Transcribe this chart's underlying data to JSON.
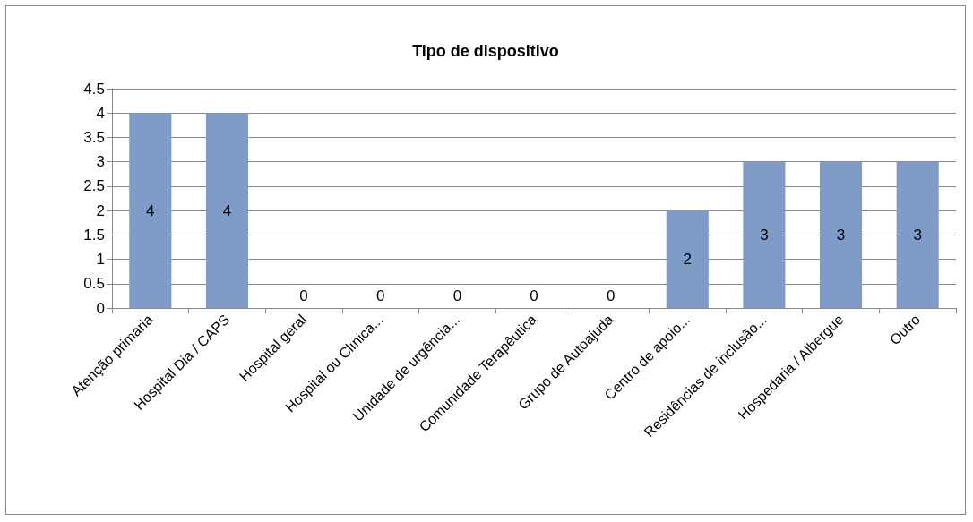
{
  "chart_data": {
    "type": "bar",
    "title": "Tipo de dispositivo",
    "categories": [
      "Atenção primária",
      "Hospital Dia / CAPS",
      "Hospital geral",
      "Hospital ou Clínica...",
      "Unidade de urgência...",
      "Comunidade Terapêutica",
      "Grupo de Autoajuda",
      "Centro de apoio...",
      "Residências de inclusão...",
      "Hospedaria / Albergue",
      "Outro"
    ],
    "values": [
      4,
      4,
      0,
      0,
      0,
      0,
      0,
      2,
      3,
      3,
      3
    ],
    "color": "#7f9cc9",
    "ylim": [
      0,
      4.5
    ],
    "yticks": [
      0,
      0.5,
      1,
      1.5,
      2,
      2.5,
      3,
      3.5,
      4,
      4.5
    ],
    "grid": "y",
    "data_labels": true
  }
}
